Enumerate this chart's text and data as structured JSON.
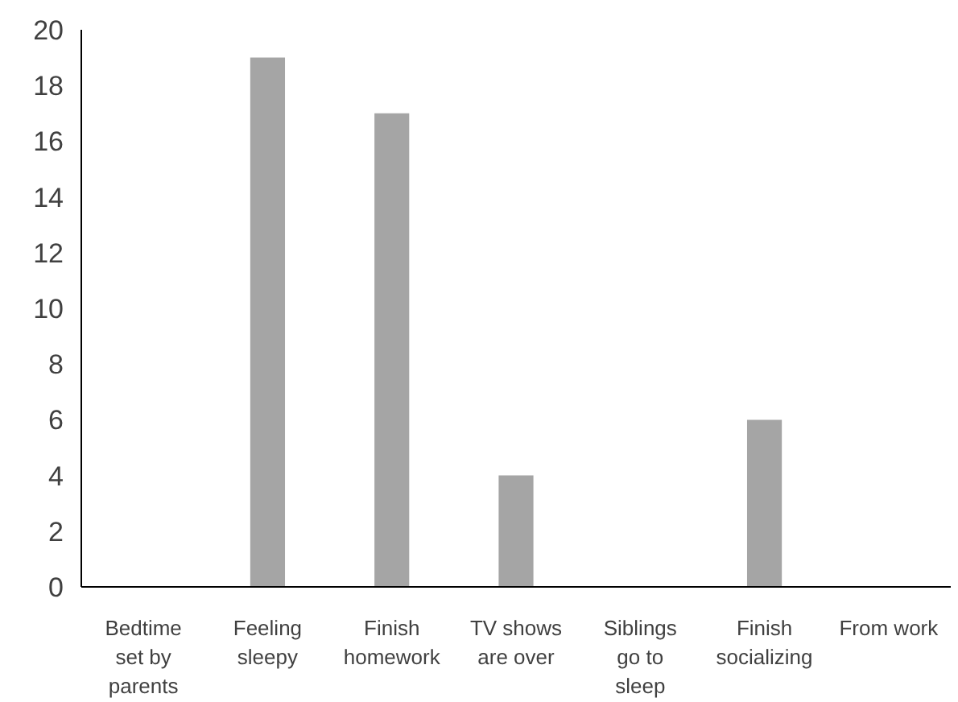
{
  "chart_data": {
    "type": "bar",
    "categories": [
      "Bedtime\nset by\nparents",
      "Feeling\nsleepy",
      "Finish\nhomework",
      "TV shows\nare over",
      "Siblings\ngo to\nsleep",
      "Finish\nsocializing",
      "From work"
    ],
    "values": [
      0,
      19,
      17,
      4,
      0,
      6,
      0
    ],
    "color": "#a5a5a5",
    "ylim": [
      0,
      20
    ],
    "yticks": [
      0,
      2,
      4,
      6,
      8,
      10,
      12,
      14,
      16,
      18,
      20
    ],
    "grid": false
  }
}
